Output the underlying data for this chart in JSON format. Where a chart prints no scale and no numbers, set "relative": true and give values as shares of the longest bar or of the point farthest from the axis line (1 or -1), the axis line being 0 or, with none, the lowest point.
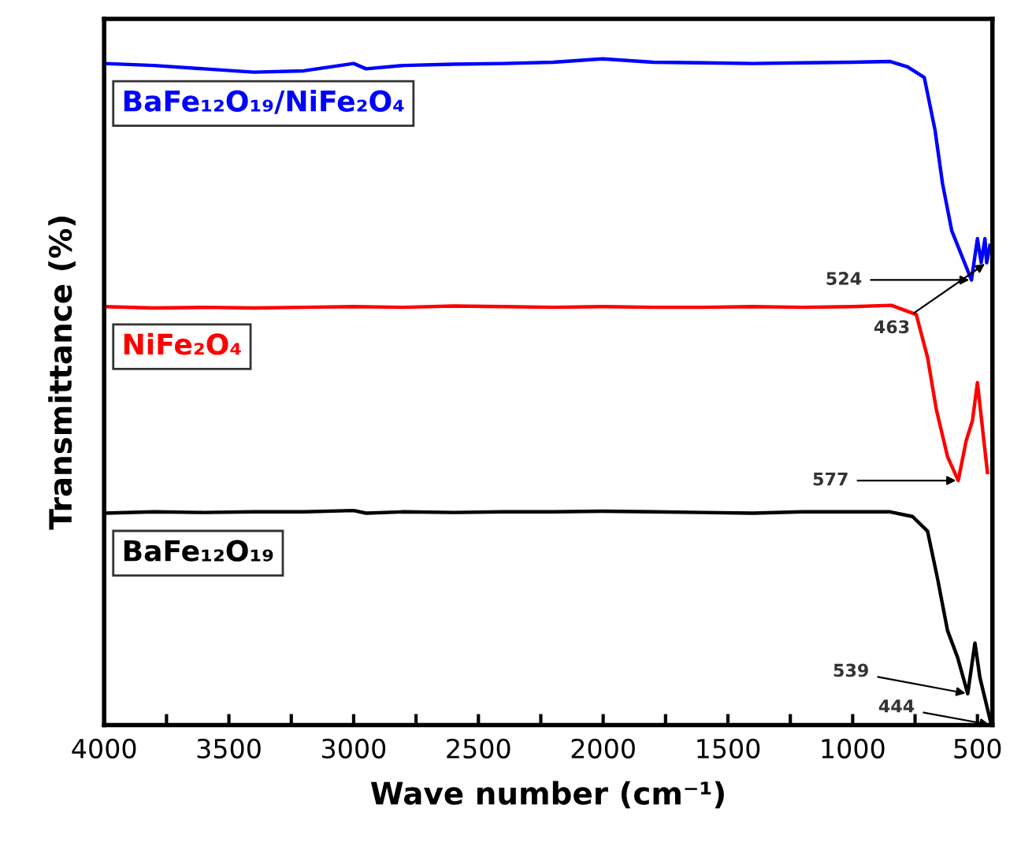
{
  "chart_data": {
    "type": "line",
    "relative": true,
    "xlabel": "Wave number (cm⁻¹)",
    "ylabel": "Transmittance (%)",
    "xlim": [
      4000,
      440
    ],
    "xticks": [
      4000,
      {
        "value": 3750,
        "label": null
      },
      3500,
      {
        "value": 3250,
        "label": null
      },
      3000,
      {
        "value": 2750,
        "label": null
      },
      2500,
      {
        "value": 2250,
        "label": null
      },
      2000,
      {
        "value": 1750,
        "label": null
      },
      1500,
      {
        "value": 1250,
        "label": null
      },
      1000,
      {
        "value": 750,
        "label": null
      },
      500
    ],
    "tick_labels": "x",
    "grid": false,
    "legend": false,
    "marker": "none",
    "line_style": "solid",
    "series": [
      {
        "name": "BaFe₁₂O₁₉/NiFe₂O₄",
        "color": "#0000ff",
        "x": [
          4000,
          3800,
          3600,
          3400,
          3200,
          3000,
          2950,
          2800,
          2600,
          2400,
          2200,
          2000,
          1800,
          1600,
          1400,
          1200,
          1000,
          850,
          780,
          713,
          670,
          640,
          603,
          524,
          500,
          485,
          470,
          463,
          450
        ],
        "values": [
          0.993,
          0.99,
          0.985,
          0.98,
          0.982,
          0.993,
          0.985,
          0.99,
          0.992,
          0.993,
          0.995,
          1.0,
          0.995,
          0.994,
          0.993,
          0.994,
          0.995,
          0.996,
          0.988,
          0.972,
          0.893,
          0.813,
          0.742,
          0.668,
          0.73,
          0.694,
          0.73,
          0.694,
          0.72
        ]
      },
      {
        "name": "NiFe₂O₄",
        "color": "#ff0000",
        "x": [
          4000,
          3800,
          3600,
          3400,
          3200,
          3000,
          2800,
          2600,
          2400,
          2200,
          2000,
          1800,
          1600,
          1400,
          1200,
          1000,
          845,
          745,
          700,
          665,
          620,
          577,
          545,
          520,
          500,
          460
        ],
        "values": [
          0.628,
          0.626,
          0.627,
          0.626,
          0.627,
          0.628,
          0.627,
          0.629,
          0.628,
          0.627,
          0.628,
          0.627,
          0.627,
          0.628,
          0.627,
          0.628,
          0.63,
          0.616,
          0.552,
          0.474,
          0.403,
          0.367,
          0.427,
          0.457,
          0.514,
          0.379
        ]
      },
      {
        "name": "BaFe₁₂O₁₉",
        "color": "#000000",
        "x": [
          4000,
          3800,
          3600,
          3400,
          3200,
          3000,
          2950,
          2800,
          2600,
          2400,
          2200,
          2000,
          1800,
          1600,
          1400,
          1200,
          1000,
          850,
          760,
          700,
          660,
          620,
          580,
          539,
          510,
          490,
          444
        ],
        "values": [
          0.318,
          0.32,
          0.319,
          0.32,
          0.32,
          0.322,
          0.318,
          0.32,
          0.319,
          0.32,
          0.32,
          0.321,
          0.32,
          0.319,
          0.318,
          0.32,
          0.32,
          0.32,
          0.313,
          0.291,
          0.22,
          0.142,
          0.102,
          0.047,
          0.123,
          0.071,
          0.0
        ]
      }
    ],
    "annotations": [
      {
        "text": "524",
        "x": 524,
        "y": 0.668
      },
      {
        "text": "463",
        "x": 463,
        "y": 0.694
      },
      {
        "text": "577",
        "x": 577,
        "y": 0.367
      },
      {
        "text": "539",
        "x": 539,
        "y": 0.047
      },
      {
        "text": "444",
        "x": 444,
        "y": 0.0
      }
    ]
  }
}
